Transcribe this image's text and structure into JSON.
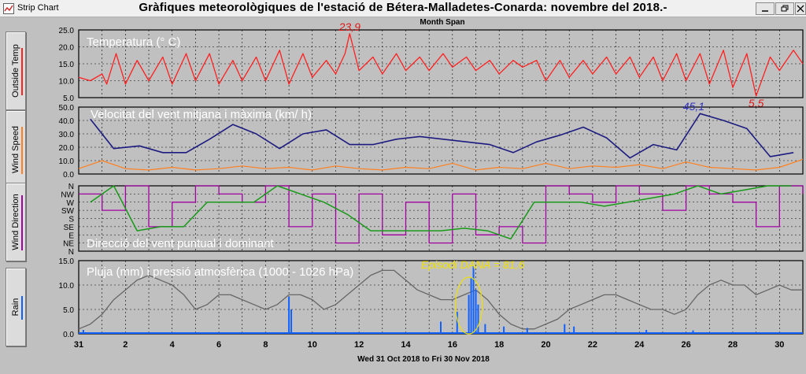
{
  "window": {
    "app_name": "Strip Chart",
    "title": "Gràfiques meteorològiques de l'estació de Bétera-Malladetes-Conarda: novembre del 2018.-",
    "span_label": "Month Span",
    "date_range": "Wed 31 Oct 2018  to  Fri 30 Nov 2018",
    "controls": [
      "minimize",
      "restore",
      "close"
    ]
  },
  "colors": {
    "background": "#c0c0c0",
    "grid": "#000000",
    "temperature": "#ff2020",
    "wind_avg": "#ff8020",
    "wind_max": "#1c1c80",
    "dir_point": "#a000a0",
    "dir_dominant": "#1a9a1a",
    "rain": "#1060ff",
    "pressure": "#666666",
    "annotation_red": "#e01818",
    "annotation_blue": "#3030c0",
    "annotation_yellow": "#f0e000"
  },
  "side_tabs": [
    "Outside Temp",
    "Wind Speed",
    "Wind Direction",
    "Rain"
  ],
  "chart_data": [
    {
      "type": "line",
      "name": "temperature",
      "title": "Temperatura (° C)",
      "ylim": [
        5,
        25
      ],
      "yticks": [
        "5.0",
        "10.0",
        "15.0",
        "20.0",
        "25.0"
      ],
      "x": [
        0.0,
        0.5,
        1.0,
        1.2,
        1.6,
        2.0,
        2.5,
        3.0,
        3.6,
        4.0,
        4.6,
        5.0,
        5.6,
        6.0,
        6.6,
        7.0,
        7.6,
        8.0,
        8.6,
        9.0,
        9.6,
        10.0,
        10.6,
        11.0,
        11.4,
        11.6,
        12.0,
        12.6,
        13.0,
        13.6,
        14.0,
        14.6,
        15.0,
        15.6,
        16.0,
        16.6,
        17.0,
        17.6,
        18.0,
        18.6,
        19.0,
        19.6,
        20.0,
        20.6,
        21.0,
        21.6,
        22.0,
        22.6,
        23.0,
        23.6,
        24.0,
        24.6,
        25.0,
        25.6,
        26.0,
        26.6,
        27.0,
        27.6,
        28.0,
        28.6,
        29.0,
        29.6,
        30.0,
        30.6,
        31.0
      ],
      "y": [
        11,
        10,
        12,
        9,
        18,
        9,
        16,
        10,
        17,
        9,
        18,
        10,
        18,
        9,
        16,
        10,
        17,
        10,
        19,
        9,
        18,
        11,
        16,
        12,
        18,
        23.9,
        13,
        17,
        12,
        18,
        13,
        17,
        13,
        18,
        14,
        17,
        13,
        16,
        12,
        16,
        14,
        16,
        10,
        16,
        11,
        16,
        12,
        17,
        12,
        17,
        11,
        17,
        10,
        18,
        10,
        18,
        9,
        19,
        8,
        18,
        5.5,
        17,
        13,
        19,
        15
      ],
      "annotations": [
        {
          "label": "23,9",
          "x": 11.6,
          "y": 23.9
        },
        {
          "label": "5,5",
          "x": 29.0,
          "y": 5.5
        }
      ]
    },
    {
      "type": "line",
      "name": "wind",
      "title": "Velocitat del vent mitjana i màxima (km/ h)",
      "ylim": [
        0,
        50
      ],
      "yticks": [
        "0.0",
        "10.0",
        "20.0",
        "30.0",
        "40.0",
        "50.0"
      ],
      "series": [
        {
          "name": "max",
          "x": [
            0.5,
            1.5,
            2.6,
            3.6,
            4.6,
            5.6,
            6.6,
            7.6,
            8.6,
            9.6,
            10.6,
            11.6,
            12.6,
            13.6,
            14.6,
            15.6,
            16.6,
            17.6,
            18.6,
            19.6,
            20.6,
            21.6,
            22.6,
            23.6,
            24.6,
            25.6,
            26.6,
            27.6,
            28.6,
            29.6,
            30.6
          ],
          "y": [
            41,
            19,
            21,
            16,
            16,
            26,
            37,
            30,
            19,
            30,
            33,
            22,
            22,
            26,
            28,
            26,
            24,
            22,
            16,
            24,
            29,
            35,
            27,
            12,
            22,
            18,
            45.1,
            40,
            34,
            13,
            16
          ]
        },
        {
          "name": "avg",
          "x": [
            0,
            1,
            2,
            3,
            4,
            5,
            6,
            7,
            8,
            9,
            10,
            11,
            12,
            13,
            14,
            15,
            16,
            17,
            18,
            19,
            20,
            21,
            22,
            23,
            24,
            25,
            26,
            27,
            28,
            29,
            30,
            31
          ],
          "y": [
            4,
            10,
            4,
            3,
            5,
            3,
            4,
            6,
            4,
            5,
            3,
            6,
            4,
            3,
            5,
            4,
            8,
            3,
            5,
            4,
            8,
            4,
            6,
            5,
            7,
            4,
            9,
            5,
            4,
            3,
            5,
            11
          ]
        }
      ],
      "annotations": [
        {
          "label": "45,1",
          "x": 26.6,
          "y": 45.1
        }
      ]
    },
    {
      "type": "line",
      "name": "wind_direction",
      "title": "Direcció del vent puntual i dominant",
      "yticks": [
        "N",
        "NE",
        "E",
        "SE",
        "S",
        "SW",
        "W",
        "NW",
        "N"
      ],
      "series": [
        {
          "name": "dominant",
          "x": [
            0.5,
            1.5,
            2.5,
            3.5,
            4.5,
            5.5,
            6.5,
            7.5,
            8.5,
            9.5,
            10.5,
            11.5,
            12.5,
            13.5,
            14.5,
            15.5,
            16.5,
            17.5,
            18.5,
            19.5,
            20.5,
            21.5,
            22.5,
            23.5,
            24.5,
            25.5,
            26.5,
            27.5,
            28.5,
            29.5,
            30.5
          ],
          "y": [
            6,
            8,
            2.5,
            3,
            3,
            6,
            6,
            6,
            8,
            7,
            6,
            4.5,
            2.5,
            2.5,
            2.5,
            2.5,
            2.8,
            2.5,
            1.5,
            6,
            6,
            6,
            5.5,
            6,
            6.5,
            7,
            8,
            7,
            7.5,
            8,
            8
          ]
        },
        {
          "name": "point",
          "x": [
            0,
            1,
            2,
            3,
            4,
            5,
            6,
            7,
            8,
            9,
            10,
            11,
            12,
            13,
            14,
            15,
            16,
            17,
            18,
            19,
            20,
            21,
            22,
            23,
            24,
            25,
            26,
            27,
            28,
            29,
            30,
            31
          ],
          "y": [
            7,
            5,
            8,
            3,
            6,
            8,
            7,
            6,
            8,
            3,
            7,
            1,
            7,
            2,
            6,
            1,
            7,
            2,
            3,
            1,
            8,
            7,
            6,
            8,
            7,
            5,
            8,
            7,
            6,
            3,
            8,
            7
          ]
        }
      ]
    },
    {
      "type": "line",
      "name": "rain_pressure",
      "title": "Pluja (mm) i pressió atmosfèrica (1000 - 1026 hPa)",
      "ylim": [
        0,
        15
      ],
      "yticks": [
        "0.0",
        "5.0",
        "10.0",
        "15.0"
      ],
      "xticks": [
        "31",
        "2",
        "4",
        "6",
        "8",
        "10",
        "12",
        "14",
        "16",
        "18",
        "20",
        "22",
        "24",
        "26",
        "28",
        "30"
      ],
      "series": [
        {
          "name": "pressure",
          "x": [
            0,
            0.5,
            1,
            1.5,
            2,
            2.5,
            3,
            3.5,
            4,
            4.5,
            5,
            5.5,
            6,
            6.5,
            7,
            7.5,
            8,
            8.5,
            9,
            9.5,
            10,
            10.5,
            11,
            11.5,
            12,
            12.5,
            13,
            13.5,
            14,
            14.5,
            15,
            15.5,
            16,
            16.5,
            17,
            17.5,
            18,
            18.5,
            19,
            19.5,
            20,
            20.5,
            21,
            21.5,
            22,
            22.5,
            23,
            23.5,
            24,
            24.5,
            25,
            25.5,
            26,
            26.5,
            27,
            27.5,
            28,
            28.5,
            29,
            29.5,
            30,
            30.5,
            31
          ],
          "y": [
            1,
            2,
            4,
            7,
            9,
            11,
            12,
            11,
            10,
            8,
            5,
            6,
            8,
            8,
            7,
            6,
            5,
            6,
            8,
            8,
            7,
            5,
            6,
            8,
            10,
            12,
            13,
            13,
            11,
            9,
            8,
            7,
            7,
            8,
            9,
            7,
            4,
            2,
            1,
            1,
            2,
            3,
            5,
            6,
            7,
            8,
            8,
            7,
            6,
            5,
            5,
            4,
            5,
            8,
            10,
            11,
            10,
            10,
            8,
            9,
            10,
            9,
            9
          ]
        },
        {
          "name": "rain",
          "x": [
            0.2,
            9.0,
            9.1,
            15.5,
            16.2,
            16.7,
            16.8,
            16.9,
            17.0,
            17.1,
            17.4,
            18.2,
            19.2,
            20.8,
            21.2,
            24.3,
            26.3
          ],
          "y": [
            0.8,
            7.6,
            5.0,
            2.5,
            4.5,
            8.0,
            11.4,
            14.0,
            9.0,
            6.0,
            2.0,
            1.5,
            1.2,
            2.0,
            1.5,
            0.8,
            0.7
          ]
        }
      ],
      "annotations": [
        {
          "label": "Episodi DANA = 81,6",
          "x": 16.8,
          "y": 13.7
        }
      ]
    }
  ]
}
